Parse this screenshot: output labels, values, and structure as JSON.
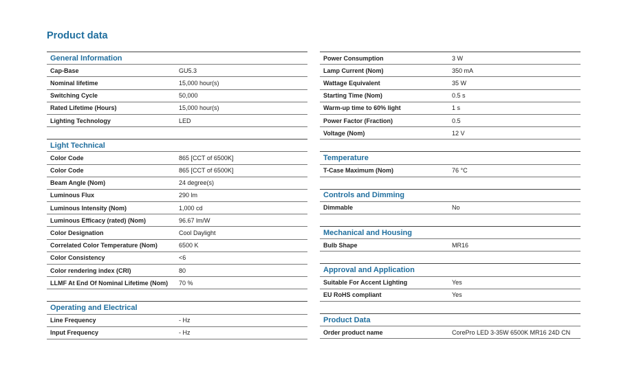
{
  "title": "Product data",
  "accent_color": "#1f6e9e",
  "left_column": [
    {
      "heading": "General Information",
      "rows": [
        [
          "Cap-Base",
          "GU5.3"
        ],
        [
          "Nominal lifetime",
          "15,000 hour(s)"
        ],
        [
          "Switching Cycle",
          "50,000"
        ],
        [
          "Rated Lifetime (Hours)",
          "15,000 hour(s)"
        ],
        [
          "Lighting Technology",
          "LED"
        ]
      ]
    },
    {
      "heading": "Light Technical",
      "rows": [
        [
          "Color Code",
          "865 [CCT of 6500K]"
        ],
        [
          "Color Code",
          "865 [CCT of 6500K]"
        ],
        [
          "Beam Angle (Nom)",
          "24 degree(s)"
        ],
        [
          "Luminous Flux",
          "290 lm"
        ],
        [
          "Luminous Intensity (Nom)",
          "1,000 cd"
        ],
        [
          "Luminous Efficacy (rated) (Nom)",
          "96.67 lm/W"
        ],
        [
          "Color Designation",
          "Cool Daylight"
        ],
        [
          "Correlated Color Temperature (Nom)",
          "6500 K"
        ],
        [
          "Color Consistency",
          "<6"
        ],
        [
          "Color rendering index (CRI)",
          "80"
        ],
        [
          "LLMF At End Of Nominal Lifetime (Nom)",
          "70 %"
        ]
      ]
    },
    {
      "heading": "Operating and Electrical",
      "rows": [
        [
          "Line Frequency",
          "- Hz"
        ],
        [
          "Input Frequency",
          "- Hz"
        ]
      ]
    }
  ],
  "right_column": [
    {
      "heading": "",
      "rows": [
        [
          "Power Consumption",
          "3 W"
        ],
        [
          "Lamp Current (Nom)",
          "350 mA"
        ],
        [
          "Wattage Equivalent",
          "35 W"
        ],
        [
          "Starting Time (Nom)",
          "0.5 s"
        ],
        [
          "Warm-up time to 60% light",
          "1 s"
        ],
        [
          "Power Factor (Fraction)",
          "0.5"
        ],
        [
          "Voltage (Nom)",
          "12 V"
        ]
      ]
    },
    {
      "heading": "Temperature",
      "rows": [
        [
          "T-Case Maximum (Nom)",
          "76 °C"
        ]
      ]
    },
    {
      "heading": "Controls and Dimming",
      "rows": [
        [
          "Dimmable",
          "No"
        ]
      ]
    },
    {
      "heading": "Mechanical and Housing",
      "rows": [
        [
          "Bulb Shape",
          "MR16"
        ]
      ]
    },
    {
      "heading": "Approval and Application",
      "rows": [
        [
          "Suitable For Accent Lighting",
          "Yes"
        ],
        [
          "EU RoHS compliant",
          "Yes"
        ]
      ]
    },
    {
      "heading": "Product Data",
      "rows": [
        [
          "Order product name",
          "CorePro LED 3-35W 6500K MR16 24D CN"
        ]
      ]
    }
  ]
}
